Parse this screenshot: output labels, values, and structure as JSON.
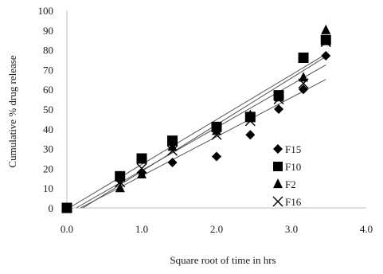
{
  "chart_data": {
    "type": "scatter",
    "title": "",
    "xlabel": "Square root of time in hrs",
    "ylabel": "Cumulative % drug release",
    "xlim": [
      0,
      4
    ],
    "ylim": [
      0,
      100
    ],
    "x_ticks": [
      "0.0",
      "1.0",
      "2.0",
      "3.0",
      "4.0"
    ],
    "y_ticks": [
      "0",
      "10",
      "20",
      "30",
      "40",
      "50",
      "60",
      "70",
      "80",
      "90",
      "100"
    ],
    "grid": false,
    "legend_position": "right",
    "trendlines": true,
    "series": [
      {
        "name": "F15",
        "marker": "diamond",
        "x": [
          0,
          0.71,
          1.0,
          1.41,
          2.0,
          2.45,
          2.83,
          3.16,
          3.46
        ],
        "y": [
          0,
          14,
          18,
          23,
          26,
          37,
          50,
          60,
          77
        ]
      },
      {
        "name": "F10",
        "marker": "square",
        "x": [
          0,
          0.71,
          1.0,
          1.41,
          2.0,
          2.45,
          2.83,
          3.16,
          3.46
        ],
        "y": [
          0,
          16,
          25,
          34,
          41,
          46,
          57,
          76,
          85
        ]
      },
      {
        "name": "F2",
        "marker": "triangle",
        "x": [
          0,
          0.71,
          1.0,
          1.41,
          2.0,
          2.45,
          2.83,
          3.16,
          3.46
        ],
        "y": [
          0,
          10,
          17,
          31,
          39,
          47,
          56,
          66,
          90
        ]
      },
      {
        "name": "F16",
        "marker": "cross",
        "x": [
          0,
          0.71,
          1.0,
          1.41,
          2.0,
          2.45,
          2.83,
          3.16,
          3.46
        ],
        "y": [
          0,
          13,
          20,
          29,
          37,
          44,
          55,
          63,
          84
        ]
      }
    ],
    "colors": {
      "marker": "#000000",
      "trendline": "#555555",
      "axis": "#bfbfbf"
    }
  }
}
